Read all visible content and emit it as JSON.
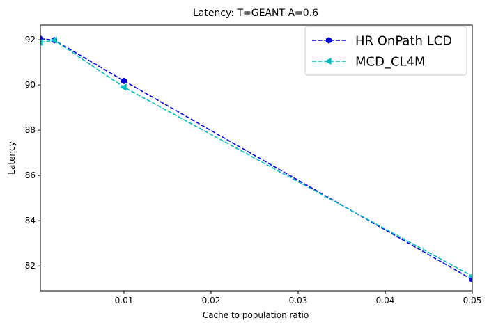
{
  "chart_data": {
    "type": "line",
    "title": "Latency: T=GEANT A=0.6",
    "xlabel": "Cache to population ratio",
    "ylabel": "Latency",
    "xlim": [
      0.0004,
      0.05
    ],
    "ylim": [
      80.9,
      92.65
    ],
    "xticks": [
      0.01,
      0.02,
      0.03,
      0.04,
      0.05
    ],
    "xtick_labels": [
      "0.01",
      "0.02",
      "0.03",
      "0.04",
      "0.05"
    ],
    "yticks": [
      82,
      84,
      86,
      88,
      90,
      92
    ],
    "ytick_labels": [
      "82",
      "84",
      "86",
      "88",
      "90",
      "92"
    ],
    "grid": false,
    "legend_position": "top-right",
    "series": [
      {
        "name": "HR OnPath LCD",
        "color": "#0000dd",
        "marker": "hexagon",
        "linestyle": "dashed",
        "x": [
          0.0004,
          0.002,
          0.01,
          0.05
        ],
        "values": [
          92.05,
          91.98,
          90.18,
          81.4
        ]
      },
      {
        "name": "MCD_CL4M",
        "color": "#00bcbc",
        "marker": "triangle-left",
        "linestyle": "dashed",
        "x": [
          0.0004,
          0.002,
          0.01,
          0.05
        ],
        "values": [
          91.88,
          91.98,
          89.9,
          81.55
        ]
      }
    ]
  }
}
